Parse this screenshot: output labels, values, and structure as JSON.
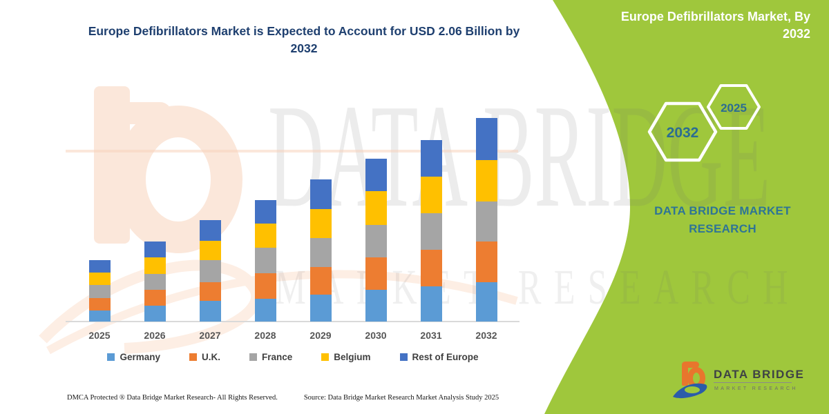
{
  "title": {
    "text": "Europe Defibrillators Market is Expected to Account for USD 2.06 Billion by 2032"
  },
  "panel": {
    "heading": "Europe Defibrillators Market, By 2032",
    "hex_large": "2032",
    "hex_small": "2025",
    "brand": "DATA BRIDGE MARKET RESEARCH"
  },
  "logo": {
    "title": "DATA BRIDGE",
    "subtitle": "MARKET RESEARCH"
  },
  "watermark": {
    "line1": "DATA BRIDGE",
    "line2": "MARKET RESEARCH"
  },
  "footer": {
    "dmca": "DMCA Protected ® Data Bridge Market Research-  All Rights Reserved.",
    "source": "Source: Data Bridge Market Research  Market Analysis Study 2025"
  },
  "colors": {
    "panel_green": "#9FC73C",
    "title_navy": "#1E3F6F",
    "brand_teal": "#2E7496",
    "hex_number_teal": "#2B6D92",
    "axis_label_gray": "#565656",
    "axis_line_gray": "#D9D9D9",
    "logo_orange": "#E8762D",
    "logo_blue": "#2B5CA9",
    "germany_blue": "#5B9BD5",
    "uk_orange": "#ED7D31",
    "france_gray": "#A5A5A5",
    "belgium_yellow": "#FFC000",
    "rest_of_europe_blue": "#4472C4"
  },
  "chart_data": {
    "type": "bar",
    "stacked": true,
    "title": "Europe Defibrillators Market is Expected to Account for USD 2.06 Billion by 2032",
    "unit": "USD billion",
    "xlabel": "",
    "ylabel": "",
    "ylim": [
      0,
      2.2
    ],
    "grid": false,
    "legend_position": "bottom",
    "axes_visible": "x-axis only, no y-axis, no data labels",
    "categories": [
      "2025",
      "2026",
      "2027",
      "2028",
      "2029",
      "2030",
      "2031",
      "2032"
    ],
    "totals": [
      0.62,
      0.81,
      1.03,
      1.23,
      1.44,
      1.65,
      1.84,
      2.06
    ],
    "series": [
      {
        "name": "Germany",
        "color": "#5B9BD5",
        "values": [
          0.11,
          0.16,
          0.21,
          0.23,
          0.27,
          0.32,
          0.36,
          0.4
        ]
      },
      {
        "name": "U.K.",
        "color": "#ED7D31",
        "values": [
          0.13,
          0.16,
          0.19,
          0.26,
          0.28,
          0.33,
          0.37,
          0.41
        ]
      },
      {
        "name": "France",
        "color": "#A5A5A5",
        "values": [
          0.13,
          0.16,
          0.22,
          0.26,
          0.3,
          0.33,
          0.37,
          0.41
        ]
      },
      {
        "name": "Belgium",
        "color": "#FFC000",
        "values": [
          0.13,
          0.17,
          0.2,
          0.24,
          0.29,
          0.34,
          0.37,
          0.42
        ]
      },
      {
        "name": "Rest of Europe",
        "color": "#4472C4",
        "values": [
          0.12,
          0.16,
          0.21,
          0.24,
          0.3,
          0.33,
          0.37,
          0.42
        ]
      }
    ]
  }
}
